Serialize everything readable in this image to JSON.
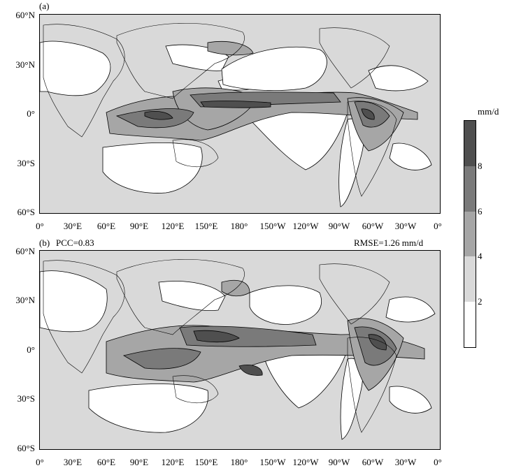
{
  "panels": {
    "a": {
      "label": "(a)"
    },
    "b": {
      "label": "(b)",
      "pcc": "PCC=0.83",
      "rmse": "RMSE=1.26 mm/d"
    }
  },
  "axes": {
    "lat_ticks": [
      "60°N",
      "30°N",
      "0°",
      "30°S",
      "60°S"
    ],
    "lon_ticks": [
      "0°",
      "30°E",
      "60°E",
      "90°E",
      "120°E",
      "150°E",
      "180°",
      "150°W",
      "120°W",
      "90°W",
      "60°W",
      "30°W",
      "0°"
    ]
  },
  "colorbar": {
    "unit": "mm/d",
    "levels": [
      "2",
      "4",
      "6",
      "8"
    ],
    "colors": [
      "#ffffff",
      "#d9d9d9",
      "#a6a6a6",
      "#7a7a7a",
      "#4f4f4f"
    ]
  },
  "colors": {
    "background": "#d9d9d9",
    "dry": "#ffffff",
    "mid": "#a6a6a6",
    "wet": "#7a7a7a",
    "wettest": "#4f4f4f",
    "contour": "#000000"
  }
}
